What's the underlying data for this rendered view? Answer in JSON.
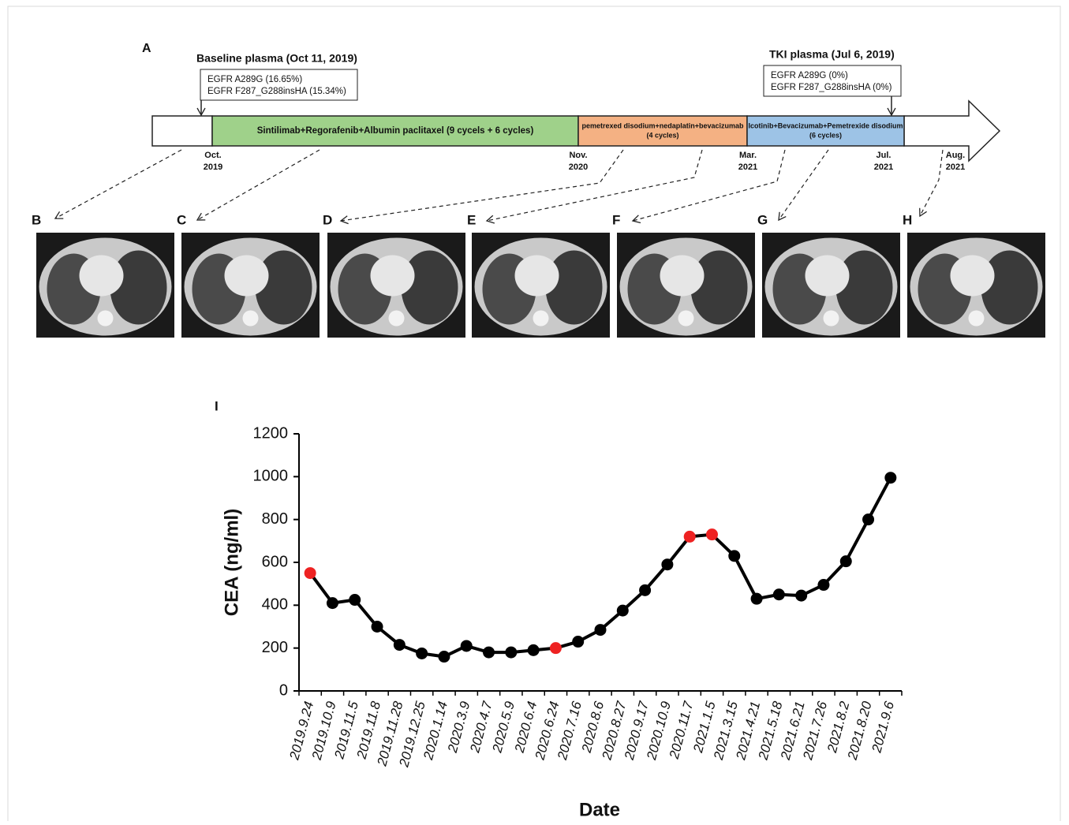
{
  "timeline": {
    "panel_label": "A",
    "baseline": {
      "title": "Baseline plasma (Oct 11, 2019)",
      "lines": [
        "EGFR A289G (16.65%)",
        "EGFR F287_G288insHA (15.34%)"
      ]
    },
    "tki": {
      "title": "TKI plasma (Jul 6, 2019)",
      "lines": [
        "EGFR A289G (0%)",
        "EGFR F287_G288insHA (0%)"
      ]
    },
    "treatments": [
      {
        "lines": [
          "Sintilimab+Regorafenib+Albumin paclitaxel (9 cycels + 6 cycles)"
        ],
        "color": "#9fd18a"
      },
      {
        "lines": [
          "pemetrexed disodium+nedaplatin+bevacizumab",
          "(4 cycles)"
        ],
        "color": "#f4b183"
      },
      {
        "lines": [
          "Icotinib+Bevacizumab+Pemetrexide disodium",
          "(6 cycles)"
        ],
        "color": "#9dc3e6"
      }
    ],
    "dates": [
      [
        "Oct.",
        "2019"
      ],
      [
        "Nov.",
        "2020"
      ],
      [
        "Mar.",
        "2021"
      ],
      [
        "Jul.",
        "2021"
      ],
      [
        "Aug.",
        "2021"
      ]
    ]
  },
  "ct_panels": [
    "B",
    "C",
    "D",
    "E",
    "F",
    "G",
    "H"
  ],
  "chart_data": {
    "type": "line",
    "panel_label": "I",
    "x_label": "Date",
    "y_label": "CEA (ng/ml)",
    "categories": [
      "2019.9.24",
      "2019.10.9",
      "2019.11.5",
      "2019.11.8",
      "2019.11.28",
      "2019.12.25",
      "2020.1.14",
      "2020.3.9",
      "2020.4.7",
      "2020.5.9",
      "2020.6.4",
      "2020.6.24",
      "2020.7.16",
      "2020.8.6",
      "2020.8.27",
      "2020.9.17",
      "2020.10.9",
      "2020.11.7",
      "2021.1.5",
      "2021.3.15",
      "2021.4.21",
      "2021.5.18",
      "2021.6.21",
      "2021.7.26",
      "2021.8.2",
      "2021.8.20",
      "2021.9.6"
    ],
    "values": [
      550,
      410,
      425,
      300,
      215,
      175,
      160,
      210,
      180,
      180,
      190,
      200,
      230,
      285,
      375,
      470,
      590,
      720,
      730,
      630,
      430,
      450,
      445,
      495,
      605,
      800,
      995
    ],
    "color": "#000000",
    "marker_colors": [
      "#ee2222",
      "#000000",
      "#000000",
      "#000000",
      "#000000",
      "#000000",
      "#000000",
      "#000000",
      "#000000",
      "#000000",
      "#000000",
      "#ee2222",
      "#000000",
      "#000000",
      "#000000",
      "#000000",
      "#000000",
      "#ee2222",
      "#ee2222",
      "#000000",
      "#000000",
      "#000000",
      "#000000",
      "#000000",
      "#000000",
      "#000000",
      "#000000"
    ],
    "ylim": [
      0,
      1200
    ],
    "yticks": [
      0,
      200,
      400,
      600,
      800,
      1000,
      1200
    ]
  }
}
